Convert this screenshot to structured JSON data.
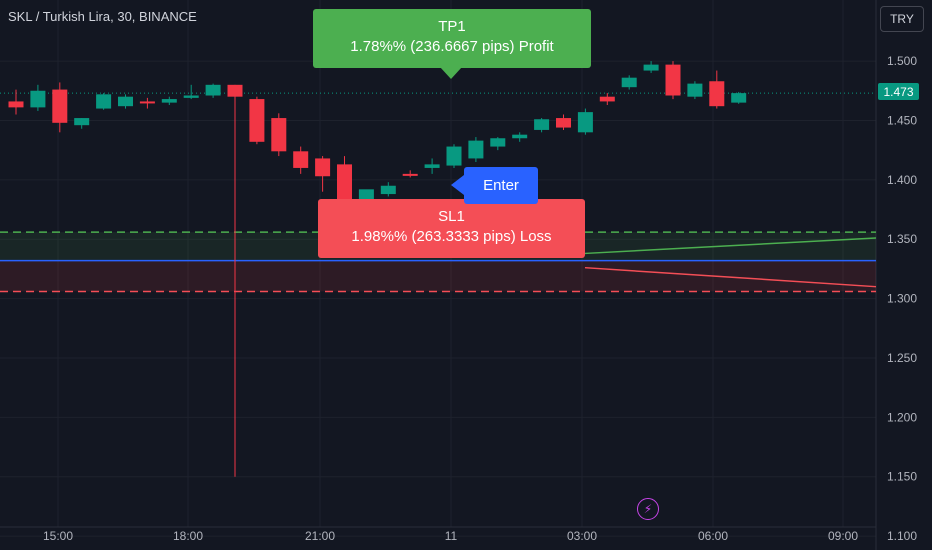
{
  "header": {
    "title": "SKL / Turkish Lira, 30, BINANCE",
    "currency_button": "TRY",
    "last_price": "1.473"
  },
  "labels": {
    "tp_title": "TP1",
    "tp_text": "1.78%% (236.6667 pips) Profit",
    "sl_title": "SL1",
    "sl_text": "1.98%% (263.3333 pips) Loss",
    "enter": "Enter"
  },
  "colors": {
    "background": "#131722",
    "bull": "#089981",
    "bear": "#f23645",
    "tp": "#4caf50",
    "sl": "#f44e56",
    "enter": "#2962ff",
    "entry_line": "#2962ff"
  },
  "icons": {
    "bolt": "lightning-icon"
  },
  "chart_data": {
    "type": "candlestick",
    "y_ticks": [
      "1.500",
      "1.450",
      "1.400",
      "1.350",
      "1.300",
      "1.250",
      "1.200",
      "1.150",
      "1.100"
    ],
    "x_ticks": [
      "15:00",
      "18:00",
      "21:00",
      "11",
      "03:00",
      "06:00",
      "09:00"
    ],
    "ylim": [
      1.095,
      1.535
    ],
    "levels": {
      "take_profit": 1.356,
      "entry": 1.332,
      "stop_loss": 1.306,
      "last": 1.473
    },
    "candles": [
      {
        "t": 0,
        "o": 1.466,
        "h": 1.476,
        "l": 1.455,
        "c": 1.461
      },
      {
        "t": 1,
        "o": 1.461,
        "h": 1.48,
        "l": 1.458,
        "c": 1.475
      },
      {
        "t": 2,
        "o": 1.476,
        "h": 1.482,
        "l": 1.44,
        "c": 1.448
      },
      {
        "t": 3,
        "o": 1.446,
        "h": 1.452,
        "l": 1.443,
        "c": 1.452
      },
      {
        "t": 4,
        "o": 1.46,
        "h": 1.473,
        "l": 1.459,
        "c": 1.472
      },
      {
        "t": 5,
        "o": 1.462,
        "h": 1.472,
        "l": 1.46,
        "c": 1.47
      },
      {
        "t": 6,
        "o": 1.466,
        "h": 1.469,
        "l": 1.46,
        "c": 1.465
      },
      {
        "t": 7,
        "o": 1.465,
        "h": 1.47,
        "l": 1.463,
        "c": 1.468
      },
      {
        "t": 8,
        "o": 1.469,
        "h": 1.48,
        "l": 1.468,
        "c": 1.471
      },
      {
        "t": 9,
        "o": 1.471,
        "h": 1.481,
        "l": 1.469,
        "c": 1.48
      },
      {
        "t": 10,
        "o": 1.48,
        "h": 1.48,
        "l": 1.15,
        "c": 1.47
      },
      {
        "t": 11,
        "o": 1.468,
        "h": 1.47,
        "l": 1.43,
        "c": 1.432
      },
      {
        "t": 12,
        "o": 1.452,
        "h": 1.456,
        "l": 1.42,
        "c": 1.424
      },
      {
        "t": 13,
        "o": 1.424,
        "h": 1.428,
        "l": 1.405,
        "c": 1.41
      },
      {
        "t": 14,
        "o": 1.418,
        "h": 1.42,
        "l": 1.39,
        "c": 1.403
      },
      {
        "t": 15,
        "o": 1.413,
        "h": 1.42,
        "l": 1.372,
        "c": 1.38
      },
      {
        "t": 16,
        "o": 1.38,
        "h": 1.39,
        "l": 1.378,
        "c": 1.392
      },
      {
        "t": 17,
        "o": 1.388,
        "h": 1.398,
        "l": 1.386,
        "c": 1.395
      },
      {
        "t": 18,
        "o": 1.405,
        "h": 1.408,
        "l": 1.402,
        "c": 1.404
      },
      {
        "t": 19,
        "o": 1.41,
        "h": 1.418,
        "l": 1.405,
        "c": 1.413
      },
      {
        "t": 20,
        "o": 1.412,
        "h": 1.43,
        "l": 1.41,
        "c": 1.428
      },
      {
        "t": 21,
        "o": 1.418,
        "h": 1.436,
        "l": 1.415,
        "c": 1.433
      },
      {
        "t": 22,
        "o": 1.428,
        "h": 1.436,
        "l": 1.425,
        "c": 1.435
      },
      {
        "t": 23,
        "o": 1.435,
        "h": 1.44,
        "l": 1.432,
        "c": 1.438
      },
      {
        "t": 24,
        "o": 1.442,
        "h": 1.452,
        "l": 1.44,
        "c": 1.451
      },
      {
        "t": 25,
        "o": 1.452,
        "h": 1.455,
        "l": 1.442,
        "c": 1.444
      },
      {
        "t": 26,
        "o": 1.44,
        "h": 1.46,
        "l": 1.438,
        "c": 1.457
      },
      {
        "t": 27,
        "o": 1.47,
        "h": 1.473,
        "l": 1.463,
        "c": 1.466
      },
      {
        "t": 28,
        "o": 1.478,
        "h": 1.488,
        "l": 1.476,
        "c": 1.486
      },
      {
        "t": 29,
        "o": 1.492,
        "h": 1.5,
        "l": 1.49,
        "c": 1.497
      },
      {
        "t": 30,
        "o": 1.497,
        "h": 1.5,
        "l": 1.468,
        "c": 1.471
      },
      {
        "t": 31,
        "o": 1.47,
        "h": 1.483,
        "l": 1.468,
        "c": 1.481
      },
      {
        "t": 32,
        "o": 1.483,
        "h": 1.492,
        "l": 1.46,
        "c": 1.462
      },
      {
        "t": 33,
        "o": 1.465,
        "h": 1.474,
        "l": 1.464,
        "c": 1.473
      }
    ]
  }
}
